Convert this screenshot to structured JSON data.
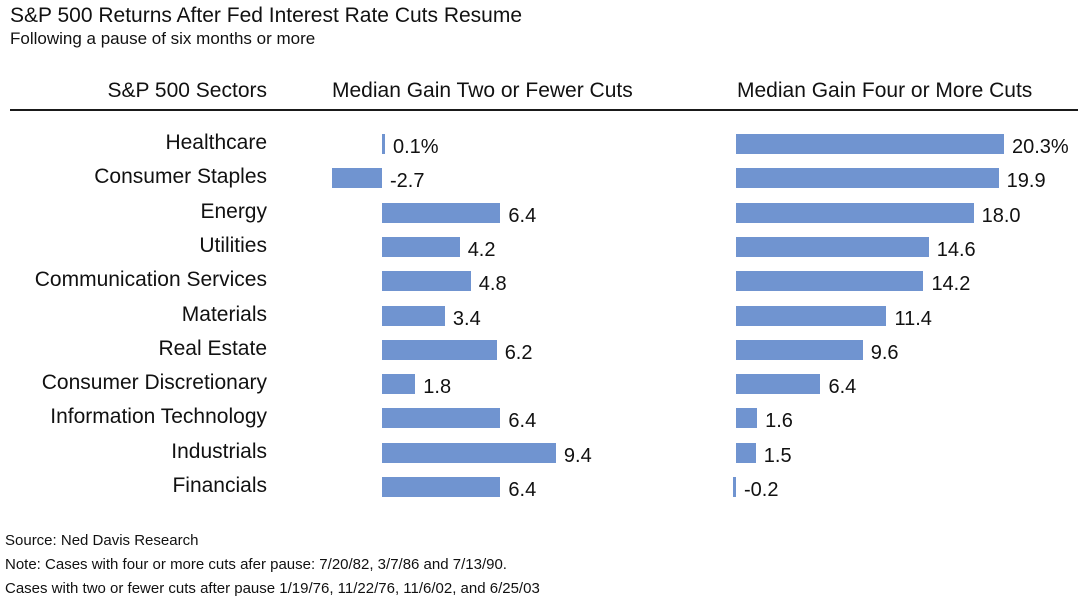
{
  "title": "S&P 500 Returns After Fed Interest Rate Cuts Resume",
  "subtitle": "Following a pause of six months or more",
  "chart_data": {
    "type": "bar",
    "orientation": "horizontal",
    "header_categories": "S&P 500 Sectors",
    "categories": [
      "Healthcare",
      "Consumer Staples",
      "Energy",
      "Utilities",
      "Communication Services",
      "Materials",
      "Real Estate",
      "Consumer Discretionary",
      "Information Technology",
      "Industrials",
      "Financials"
    ],
    "series": [
      {
        "name": "Median Gain Two or Fewer Cuts",
        "values": [
          0.1,
          -2.7,
          6.4,
          4.2,
          4.8,
          3.4,
          6.2,
          1.8,
          6.4,
          9.4,
          6.4
        ],
        "labels": [
          "0.1%",
          "-2.7",
          "6.4",
          "4.2",
          "4.8",
          "3.4",
          "6.2",
          "1.8",
          "6.4",
          "9.4",
          "6.4"
        ]
      },
      {
        "name": "Median Gain Four or More Cuts",
        "values": [
          20.3,
          19.9,
          18.0,
          14.6,
          14.2,
          11.4,
          9.6,
          6.4,
          1.6,
          1.5,
          -0.2
        ],
        "labels": [
          "20.3%",
          "19.9",
          "18.0",
          "14.6",
          "14.2",
          "11.4",
          "9.6",
          "6.4",
          "1.6",
          "1.5",
          "-0.2"
        ]
      }
    ],
    "bar_color": "#7094d0",
    "grid": false,
    "legend": "none"
  },
  "footnotes": {
    "source": "Source: Ned Davis Research",
    "note1": "Note: Cases with four or more cuts afer pause: 7/20/82, 3/7/86 and 7/13/90.",
    "note2": "Cases with two or fewer cuts after pause 1/19/76, 11/22/76, 11/6/02, and 6/25/03"
  }
}
